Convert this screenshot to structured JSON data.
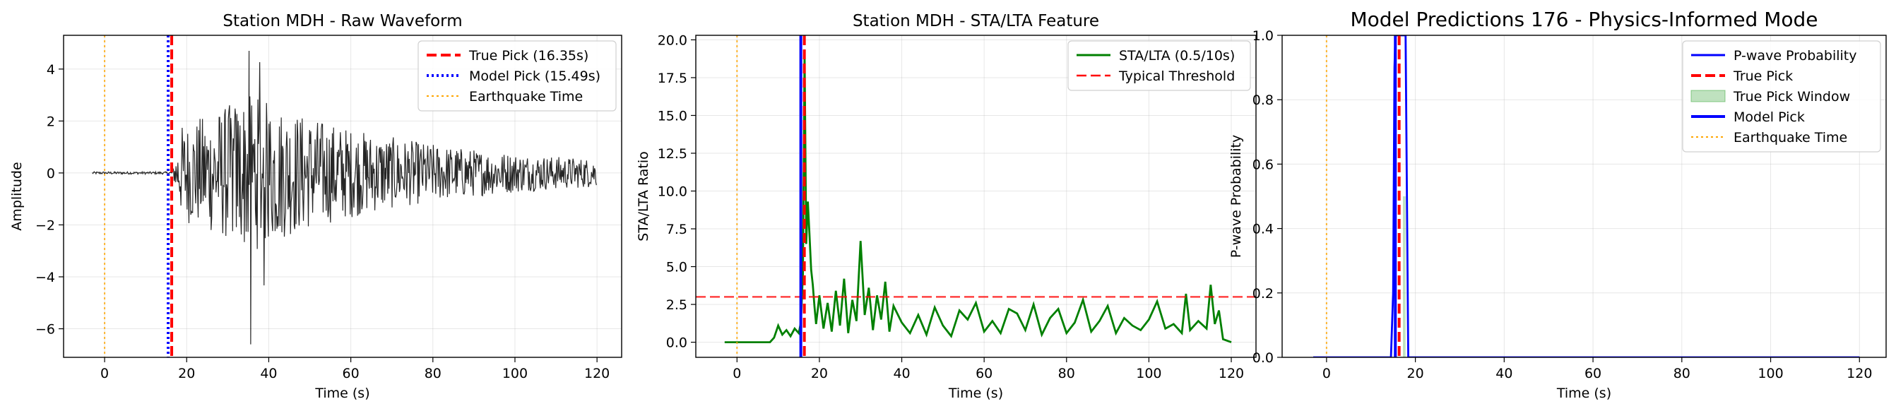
{
  "chart_data": [
    {
      "type": "line",
      "title": "Station MDH - Raw Waveform",
      "xlabel": "Time (s)",
      "ylabel": "Amplitude",
      "xlim": [
        -10,
        126
      ],
      "ylim": [
        -7.1,
        5.3
      ],
      "xticks": [
        0,
        20,
        40,
        60,
        80,
        100,
        120
      ],
      "yticks": [
        -6,
        -4,
        -2,
        0,
        2,
        4
      ],
      "grid": true,
      "legend_position": "top-right",
      "series": [
        {
          "name": "Raw waveform",
          "color": "#000000",
          "duration": [
            -3,
            120
          ],
          "onset": 16.35,
          "peak_time": 36,
          "max_amplitude": 4.7,
          "min_amplitude": -6.6
        }
      ],
      "vlines": [
        {
          "name": "True Pick (16.35s)",
          "x": 16.35,
          "color": "#ff0000",
          "style": "dashed"
        },
        {
          "name": "Model Pick (15.49s)",
          "x": 15.49,
          "color": "#0000ff",
          "style": "dotted"
        },
        {
          "name": "Earthquake Time",
          "x": 0,
          "color": "#ffa500",
          "style": "dotted"
        }
      ],
      "legend": [
        "True Pick (16.35s)",
        "Model Pick (15.49s)",
        "Earthquake Time"
      ]
    },
    {
      "type": "line",
      "title": "Station MDH - STA/LTA Feature",
      "xlabel": "Time (s)",
      "ylabel": "STA/LTA Ratio",
      "xlim": [
        -10,
        126
      ],
      "ylim": [
        -1.0,
        20.3
      ],
      "xticks": [
        0,
        20,
        40,
        60,
        80,
        100,
        120
      ],
      "yticks": [
        0.0,
        2.5,
        5.0,
        7.5,
        10.0,
        12.5,
        15.0,
        17.5,
        20.0
      ],
      "ytick_labels": [
        "0.0",
        "2.5",
        "5.0",
        "7.5",
        "10.0",
        "12.5",
        "15.0",
        "17.5",
        "20.0"
      ],
      "grid": true,
      "legend_position": "top-right",
      "series": [
        {
          "name": "STA/LTA (0.5/10s)",
          "color": "#008000",
          "x": [
            -3,
            8,
            9,
            10,
            11,
            12,
            13,
            14,
            15,
            15.5,
            16,
            16.4,
            16.8,
            17.2,
            17.6,
            18,
            18.4,
            18.8,
            19.2,
            20,
            21,
            22,
            23,
            24,
            25,
            26,
            27,
            28,
            29,
            30,
            31,
            32,
            33,
            34,
            35,
            36,
            37,
            38,
            40,
            42,
            44,
            46,
            48,
            50,
            52,
            54,
            56,
            58,
            60,
            62,
            64,
            66,
            68,
            70,
            72,
            74,
            76,
            78,
            80,
            82,
            84,
            86,
            88,
            90,
            92,
            94,
            96,
            98,
            100,
            102,
            104,
            106,
            108,
            109,
            110,
            112,
            114,
            115,
            116,
            117,
            118,
            120
          ],
          "y": [
            0,
            0,
            0.3,
            1.1,
            0.5,
            0.8,
            0.4,
            0.9,
            0.6,
            1.3,
            4.5,
            19.2,
            6.5,
            9.3,
            7.1,
            4.8,
            3.8,
            2.4,
            1.2,
            3.1,
            0.9,
            2.6,
            0.7,
            3.4,
            1.1,
            4.2,
            0.6,
            2.8,
            1.4,
            6.7,
            1.8,
            3.6,
            0.8,
            3.1,
            1.5,
            4.0,
            0.7,
            2.4,
            1.3,
            0.6,
            1.8,
            0.5,
            2.3,
            1.1,
            0.4,
            2.1,
            1.5,
            2.6,
            0.7,
            1.4,
            0.6,
            2.2,
            1.9,
            0.8,
            2.5,
            0.5,
            1.6,
            2.2,
            0.6,
            1.3,
            2.8,
            0.7,
            1.4,
            2.4,
            0.6,
            1.6,
            1.1,
            0.8,
            1.5,
            2.7,
            0.9,
            1.2,
            0.6,
            3.2,
            0.8,
            1.4,
            0.9,
            3.8,
            1.2,
            2.1,
            0.2,
            0.0
          ]
        }
      ],
      "hlines": [
        {
          "name": "Typical Threshold",
          "y": 3.0,
          "color": "#ff0000",
          "style": "dashed"
        }
      ],
      "vlines": [
        {
          "name": "True Pick",
          "x": 16.35,
          "color": "#ff0000",
          "style": "dashed"
        },
        {
          "name": "Model Pick",
          "x": 15.49,
          "color": "#0000ff",
          "style": "solid"
        },
        {
          "name": "Earthquake Time",
          "x": 0,
          "color": "#ffa500",
          "style": "dotted"
        }
      ],
      "legend": [
        "STA/LTA (0.5/10s)",
        "Typical Threshold"
      ]
    },
    {
      "type": "line",
      "title": "Model Predictions 176 - Physics-Informed Mode",
      "xlabel": "Time (s)",
      "ylabel": "P-wave Probability",
      "xlim": [
        -10,
        126
      ],
      "ylim": [
        0.0,
        1.0
      ],
      "xticks": [
        0,
        20,
        40,
        60,
        80,
        100,
        120
      ],
      "yticks": [
        0.0,
        0.2,
        0.4,
        0.6,
        0.8,
        1.0
      ],
      "ytick_labels": [
        "0.0",
        "0.2",
        "0.4",
        "0.6",
        "0.8",
        "1.0"
      ],
      "grid": true,
      "legend_position": "top-right",
      "series": [
        {
          "name": "P-wave Probability",
          "color": "#0000ff",
          "x": [
            -3,
            14.5,
            15.0,
            15.3,
            15.5,
            17.8,
            18.1,
            18.4,
            120
          ],
          "y": [
            0,
            0,
            0.2,
            0.9,
            1.0,
            1.0,
            0.5,
            0,
            0
          ]
        }
      ],
      "shaded_window": {
        "name": "True Pick Window",
        "x": [
          17.2,
          17.8
        ],
        "y": [
          0,
          0.5
        ],
        "color": "#2ca02c"
      },
      "vlines": [
        {
          "name": "True Pick",
          "x": 16.35,
          "color": "#ff0000",
          "style": "dashed"
        },
        {
          "name": "Model Pick",
          "x": 15.49,
          "color": "#0000ff",
          "style": "solid"
        },
        {
          "name": "Earthquake Time",
          "x": 0,
          "color": "#ffa500",
          "style": "dotted"
        }
      ],
      "legend": [
        "P-wave Probability",
        "True Pick",
        "True Pick Window",
        "Model Pick",
        "Earthquake Time"
      ]
    }
  ]
}
